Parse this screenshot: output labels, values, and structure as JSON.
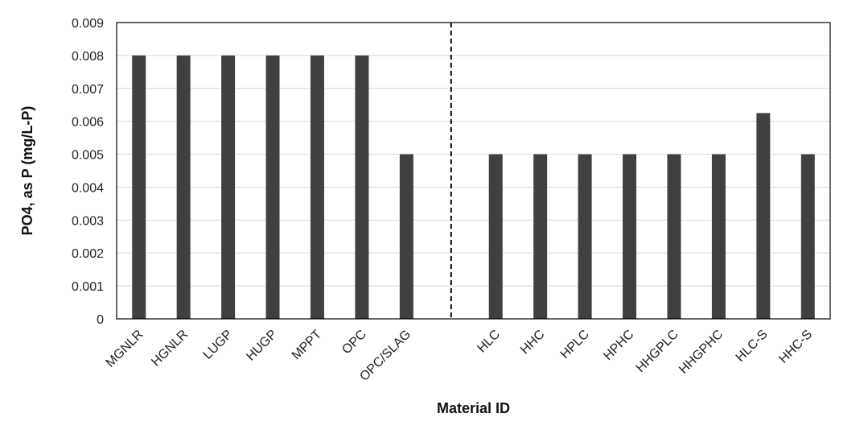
{
  "chart_data": {
    "type": "bar",
    "categories": [
      "MGNLR",
      "HGNLR",
      "LUGP",
      "HUGP",
      "MPPT",
      "OPC",
      "OPC/SLAG",
      "",
      "HLC",
      "HHC",
      "HPLC",
      "HPHC",
      "HHGPLC",
      "HHGPHC",
      "HLC-S",
      "HHC-S"
    ],
    "values": [
      0.008,
      0.008,
      0.008,
      0.008,
      0.008,
      0.008,
      0.005,
      null,
      0.005,
      0.005,
      0.005,
      0.005,
      0.005,
      0.005,
      0.00625,
      0.005
    ],
    "xlabel": "Material ID",
    "ylabel": "PO4, as P (mg/L-P)",
    "ylim": [
      0,
      0.009
    ],
    "yticks": [
      "0",
      "0.001",
      "0.002",
      "0.003",
      "0.004",
      "0.005",
      "0.006",
      "0.007",
      "0.008",
      "0.009"
    ],
    "grid": true,
    "divider": "dashed vertical line between OPC/SLAG and HLC",
    "bar_color": "#404040",
    "grid_color": "#d9d9d9"
  }
}
